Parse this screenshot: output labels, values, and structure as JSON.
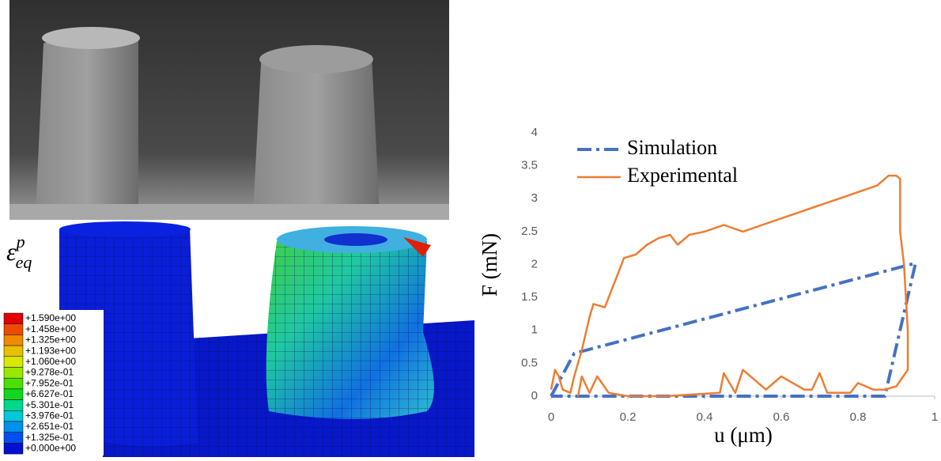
{
  "chart_data": {
    "type": "line",
    "xlabel": "u (μm)",
    "ylabel": "F (mN)",
    "xlim": [
      0,
      1
    ],
    "xticks": [
      0,
      0.2,
      0.4,
      0.6,
      0.8,
      1
    ],
    "ylim": [
      0,
      4
    ],
    "yticks": [
      0,
      0.5,
      1,
      1.5,
      2,
      2.5,
      3,
      3.5,
      4
    ],
    "grid": false,
    "legend": "upper left",
    "series": [
      {
        "name": "Simulation",
        "color": "#4472c4",
        "linestyle": "dashdot",
        "x": [
          0,
          0.06,
          0.95,
          0.87,
          0
        ],
        "values": [
          0,
          0.65,
          2.02,
          0,
          0
        ]
      },
      {
        "name": "Experimental",
        "color": "#ed7d31",
        "linestyle": "solid",
        "x": [
          0,
          0.01,
          0.02,
          0.03,
          0.05,
          0.06,
          0.08,
          0.1,
          0.11,
          0.14,
          0.15,
          0.17,
          0.19,
          0.22,
          0.25,
          0.28,
          0.31,
          0.33,
          0.36,
          0.4,
          0.45,
          0.5,
          0.55,
          0.6,
          0.65,
          0.7,
          0.75,
          0.8,
          0.85,
          0.88,
          0.9,
          0.91,
          0.91,
          0.92,
          0.93,
          0.93,
          0.9,
          0.87,
          0.84,
          0.8,
          0.78,
          0.72,
          0.7,
          0.68,
          0.66,
          0.6,
          0.56,
          0.5,
          0.48,
          0.45,
          0.44,
          0.3,
          0.2,
          0.15,
          0.12,
          0.1,
          0.08,
          0.07
        ],
        "values": [
          0.1,
          0.4,
          0.3,
          0.1,
          0.05,
          0.3,
          0.7,
          1.2,
          1.4,
          1.35,
          1.5,
          1.8,
          2.1,
          2.15,
          2.3,
          2.4,
          2.45,
          2.3,
          2.45,
          2.5,
          2.6,
          2.5,
          2.6,
          2.7,
          2.8,
          2.9,
          3.0,
          3.1,
          3.2,
          3.35,
          3.35,
          3.3,
          2.5,
          2.0,
          1.0,
          0.4,
          0.15,
          0.1,
          0.1,
          0.2,
          0.05,
          0.05,
          0.35,
          0.1,
          0.1,
          0.3,
          0.1,
          0.4,
          0.05,
          0.35,
          0.05,
          0.0,
          0.0,
          0.05,
          0.3,
          0.05,
          0.3,
          0.0
        ]
      }
    ]
  },
  "fem_legend": {
    "symbol": {
      "base": "ε",
      "sup": "p",
      "sub": "eq"
    },
    "labels": [
      "+1.590e+00",
      "+1.458e+00",
      "+1.325e+00",
      "+1.193e+00",
      "+1.060e+00",
      "+9.278e-01",
      "+7.952e-01",
      "+6.627e-01",
      "+5.301e-01",
      "+3.976e-01",
      "+2.651e-01",
      "+1.325e-01",
      "+0.000e+00"
    ],
    "colors": [
      "#e00000",
      "#f04a00",
      "#f08a00",
      "#e8c000",
      "#d8e800",
      "#9ae800",
      "#4ce000",
      "#10d820",
      "#00d88a",
      "#00c8d8",
      "#0090f0",
      "#0050f0",
      "#0010d0"
    ]
  }
}
